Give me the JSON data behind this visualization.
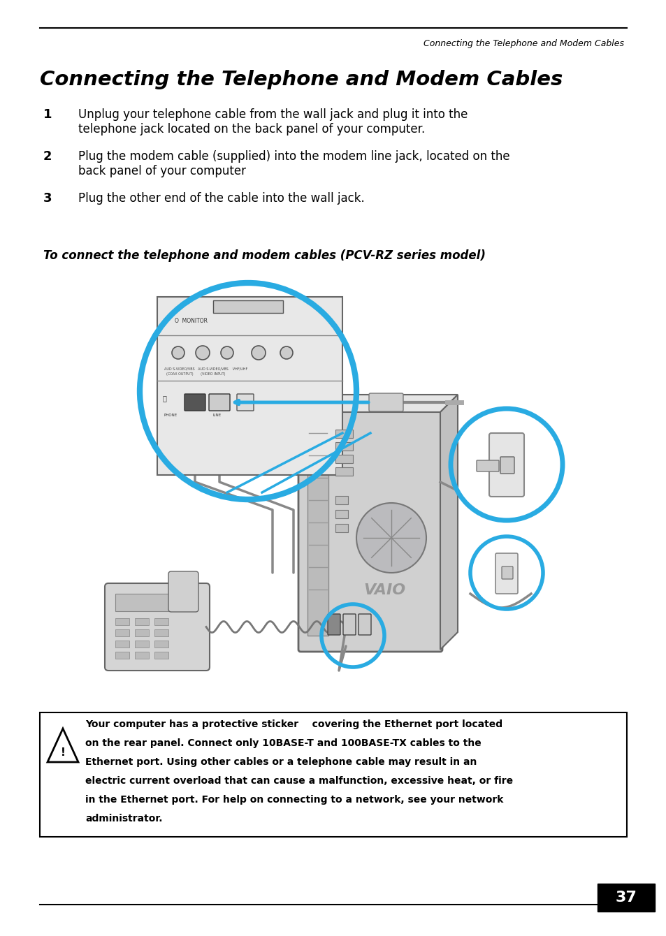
{
  "header_line_text": "Connecting the Telephone and Modem Cables",
  "main_title": "Connecting the Telephone and Modem Cables",
  "step1_num": "1",
  "step1_text_line1": "Unplug your telephone cable from the wall jack and plug it into the",
  "step1_text_line2": "telephone jack located on the back panel of your computer.",
  "step2_num": "2",
  "step2_text_line1": "Plug the modem cable (supplied) into the modem line jack, located on the",
  "step2_text_line2": "back panel of your computer",
  "step3_num": "3",
  "step3_text": "Plug the other end of the cable into the wall jack.",
  "figure_caption": "To connect the telephone and modem cables (PCV-RZ series model)",
  "warn_line1": "Your computer has a protective sticker    covering the Ethernet port located",
  "warn_line2": "on the rear panel. Connect only 10BASE-T and 100BASE-TX cables to the",
  "warn_line3": "Ethernet port. Using other cables or a telephone cable may result in an",
  "warn_line4": "electric current overload that can cause a malfunction, excessive heat, or fire",
  "warn_line5": "in the Ethernet port. For help on connecting to a network, see your network",
  "warn_line6": "administrator.",
  "page_number": "37",
  "bg_color": "#ffffff",
  "text_color": "#000000",
  "blue_color": "#29ABE2",
  "gray_light": "#d8d8d8",
  "gray_mid": "#b0b0b0",
  "gray_dark": "#888888"
}
